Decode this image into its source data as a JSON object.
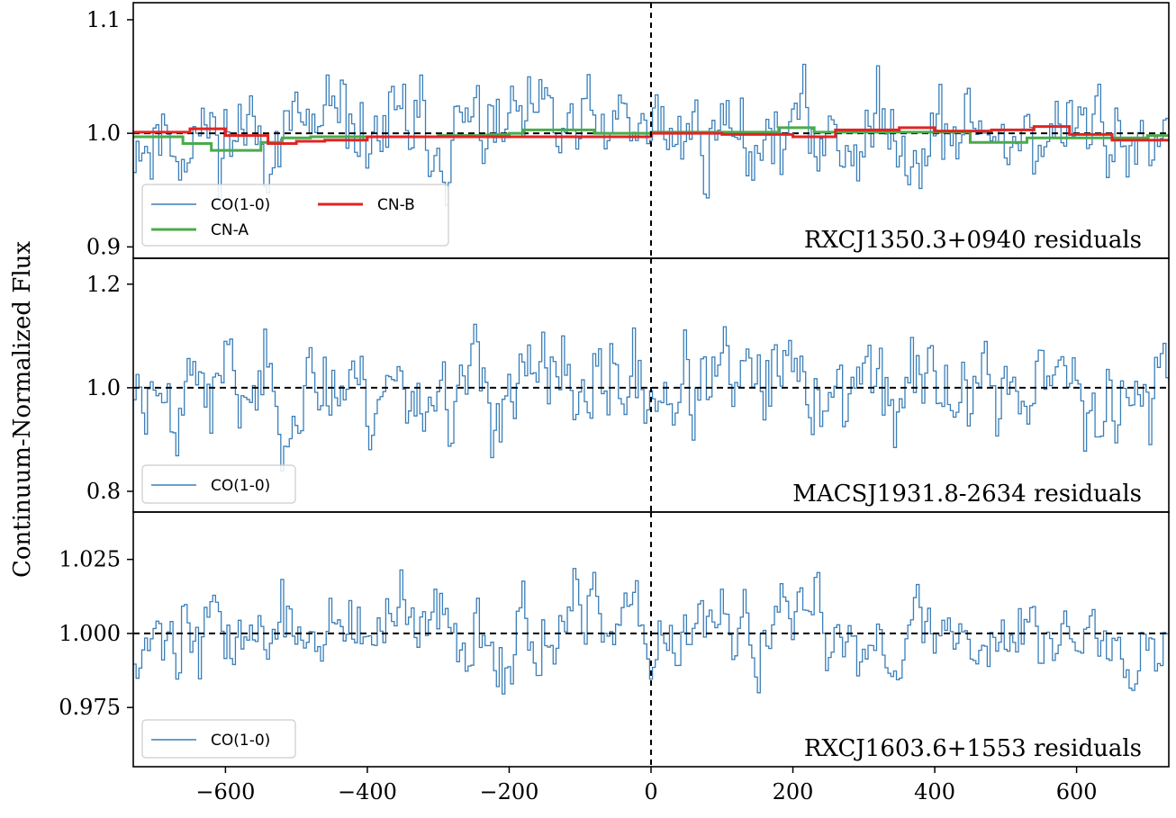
{
  "chart_data": {
    "type": "line",
    "ylabel": "Continuum-Normalized Flux",
    "xlabel": "",
    "xlim": [
      -730,
      730
    ],
    "xticks": [
      -600,
      -400,
      -200,
      0,
      200,
      400,
      600
    ],
    "xtick_labels": [
      "−600",
      "−400",
      "−200",
      "0",
      "200",
      "400",
      "600"
    ],
    "vline_x": 0,
    "colors": {
      "co": "#3a7fb9",
      "cn_a": "#4aab4a",
      "cn_b": "#e02424"
    },
    "panels": [
      {
        "label": "RXCJ1350.3+0940 residuals",
        "ylim": [
          0.89,
          1.115
        ],
        "yticks": [
          0.9,
          1.0,
          1.1
        ],
        "ytick_labels": [
          "0.9",
          "1.0",
          "1.1"
        ],
        "hline_y": 1.0,
        "noise": {
          "seed": 11,
          "sigma": 0.032,
          "lo": 0.905,
          "hi": 1.103
        },
        "legend": [
          "CO(1-0)",
          "CN-A",
          "CN-B"
        ],
        "series": [
          {
            "name": "CO(1-0)",
            "kind": "co"
          },
          {
            "name": "CN-A",
            "kind": "cn_a",
            "x": [
              -730,
              -660,
              -620,
              -550,
              -520,
              -480,
              -300,
              -230,
              -200,
              -180,
              -80,
              0,
              180,
              230,
              450,
              530,
              700,
              730
            ],
            "y": [
              0.997,
              0.991,
              0.985,
              0.992,
              0.996,
              0.997,
              0.998,
              0.999,
              1.0,
              1.003,
              1.0,
              1.001,
              1.005,
              1.001,
              0.992,
              0.996,
              0.998,
              0.998
            ]
          },
          {
            "name": "CN-B",
            "kind": "cn_b",
            "x": [
              -730,
              -650,
              -600,
              -540,
              -500,
              -460,
              -400,
              -300,
              0,
              100,
              200,
              260,
              350,
              400,
              480,
              540,
              590,
              650,
              730
            ],
            "y": [
              1.001,
              1.004,
              0.998,
              0.991,
              0.993,
              0.994,
              0.997,
              0.997,
              1.0,
              0.999,
              0.997,
              1.003,
              1.005,
              1.002,
              1.003,
              1.006,
              0.999,
              0.994,
              0.994
            ]
          }
        ]
      },
      {
        "label": "MACSJ1931.8-2634 residuals",
        "ylim": [
          0.76,
          1.25
        ],
        "yticks": [
          0.8,
          1.0,
          1.2
        ],
        "ytick_labels": [
          "0.8",
          "1.0",
          "1.2"
        ],
        "hline_y": 1.0,
        "noise": {
          "seed": 23,
          "sigma": 0.075,
          "lo": 0.81,
          "hi": 1.24
        },
        "legend": [
          "CO(1-0)"
        ],
        "series": [
          {
            "name": "CO(1-0)",
            "kind": "co"
          }
        ]
      },
      {
        "label": "RXCJ1603.6+1553 residuals",
        "ylim": [
          0.955,
          1.041
        ],
        "yticks": [
          0.975,
          1.0,
          1.025
        ],
        "ytick_labels": [
          "0.975",
          "1.000",
          "1.025"
        ],
        "hline_y": 1.0,
        "noise": {
          "seed": 37,
          "sigma": 0.011,
          "lo": 0.963,
          "hi": 1.038
        },
        "legend": [
          "CO(1-0)"
        ],
        "series": [
          {
            "name": "CO(1-0)",
            "kind": "co"
          }
        ]
      }
    ]
  }
}
